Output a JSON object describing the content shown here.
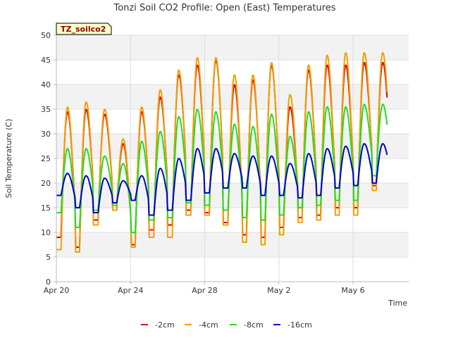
{
  "chart_data": {
    "type": "line",
    "title": "Tonzi Soil CO2 Profile: Open (East) Temperatures",
    "xlabel": "Time",
    "ylabel": "Soil Temperature (C)",
    "badge": "TZ_soilco2",
    "ylim": [
      0,
      50
    ],
    "yticks": [
      0,
      5,
      10,
      15,
      20,
      25,
      30,
      35,
      40,
      45,
      50
    ],
    "xlim": [
      "2021-04-20",
      "2021-05-09"
    ],
    "xticks": [
      {
        "date": "2021-04-20",
        "label": "Apr 20"
      },
      {
        "date": "2021-04-24",
        "label": "Apr 24"
      },
      {
        "date": "2021-04-28",
        "label": "Apr 28"
      },
      {
        "date": "2021-05-02",
        "label": "May 2"
      },
      {
        "date": "2021-05-06",
        "label": "May 6"
      }
    ],
    "grid": true,
    "legend_position": "bottom",
    "series": [
      {
        "name": "-2cm",
        "color": "#e00000",
        "days": [
          "2021-04-20",
          "2021-04-21",
          "2021-04-22",
          "2021-04-23",
          "2021-04-24",
          "2021-04-25",
          "2021-04-26",
          "2021-04-27",
          "2021-04-28",
          "2021-04-29",
          "2021-04-30",
          "2021-05-01",
          "2021-05-02",
          "2021-05-03",
          "2021-05-04",
          "2021-05-05",
          "2021-05-06",
          "2021-05-07"
        ],
        "daily_max": [
          34.5,
          35.0,
          34.0,
          28.0,
          34.5,
          37.5,
          42.0,
          44.0,
          45.0,
          40.0,
          41.0,
          44.0,
          35.5,
          43.0,
          44.0,
          44.0,
          44.5,
          44.5
        ],
        "daily_min": [
          9.0,
          7.0,
          12.5,
          14.5,
          7.5,
          10.5,
          11.5,
          14.5,
          14.0,
          12.0,
          9.5,
          9.0,
          11.0,
          13.0,
          13.5,
          15.0,
          15.0,
          19.5
        ]
      },
      {
        "name": "-4cm",
        "color": "#f0a000",
        "days": [
          "2021-04-20",
          "2021-04-21",
          "2021-04-22",
          "2021-04-23",
          "2021-04-24",
          "2021-04-25",
          "2021-04-26",
          "2021-04-27",
          "2021-04-28",
          "2021-04-29",
          "2021-04-30",
          "2021-05-01",
          "2021-05-02",
          "2021-05-03",
          "2021-05-04",
          "2021-05-05",
          "2021-05-06",
          "2021-05-07"
        ],
        "daily_max": [
          35.5,
          36.5,
          35.0,
          29.0,
          35.5,
          39.0,
          43.0,
          45.5,
          45.5,
          42.0,
          42.0,
          44.5,
          38.0,
          44.0,
          46.0,
          46.5,
          46.5,
          46.5
        ],
        "daily_min": [
          6.5,
          6.0,
          11.5,
          14.5,
          7.0,
          9.0,
          9.0,
          13.5,
          13.5,
          11.5,
          8.0,
          7.5,
          9.5,
          12.0,
          12.5,
          13.5,
          13.5,
          18.5
        ]
      },
      {
        "name": "-8cm",
        "color": "#22dd22",
        "days": [
          "2021-04-20",
          "2021-04-21",
          "2021-04-22",
          "2021-04-23",
          "2021-04-24",
          "2021-04-25",
          "2021-04-26",
          "2021-04-27",
          "2021-04-28",
          "2021-04-29",
          "2021-04-30",
          "2021-05-01",
          "2021-05-02",
          "2021-05-03",
          "2021-05-04",
          "2021-05-05",
          "2021-05-06",
          "2021-05-07"
        ],
        "daily_max": [
          27.0,
          27.0,
          25.5,
          24.0,
          28.5,
          30.5,
          33.5,
          35.0,
          34.5,
          32.0,
          31.5,
          34.0,
          29.5,
          34.5,
          35.5,
          35.5,
          36.0,
          36.0
        ],
        "daily_min": [
          14.0,
          11.0,
          14.5,
          15.5,
          10.0,
          12.5,
          13.0,
          16.0,
          15.5,
          14.5,
          13.0,
          12.5,
          13.5,
          15.0,
          15.5,
          16.5,
          16.5,
          21.5
        ]
      },
      {
        "name": "-16cm",
        "color": "#0000cc",
        "days": [
          "2021-04-20",
          "2021-04-21",
          "2021-04-22",
          "2021-04-23",
          "2021-04-24",
          "2021-04-25",
          "2021-04-26",
          "2021-04-27",
          "2021-04-28",
          "2021-04-29",
          "2021-04-30",
          "2021-05-01",
          "2021-05-02",
          "2021-05-03",
          "2021-05-04",
          "2021-05-05",
          "2021-05-06",
          "2021-05-07"
        ],
        "daily_max": [
          22.0,
          21.5,
          21.0,
          20.5,
          21.5,
          23.0,
          25.0,
          27.0,
          27.0,
          26.0,
          25.5,
          25.5,
          24.0,
          26.0,
          27.0,
          27.5,
          28.0,
          28.0
        ],
        "daily_min": [
          17.5,
          15.0,
          14.0,
          16.0,
          16.5,
          13.5,
          14.5,
          16.5,
          18.0,
          19.0,
          19.0,
          17.5,
          17.5,
          17.0,
          17.5,
          19.0,
          19.5,
          20.0
        ]
      }
    ]
  }
}
